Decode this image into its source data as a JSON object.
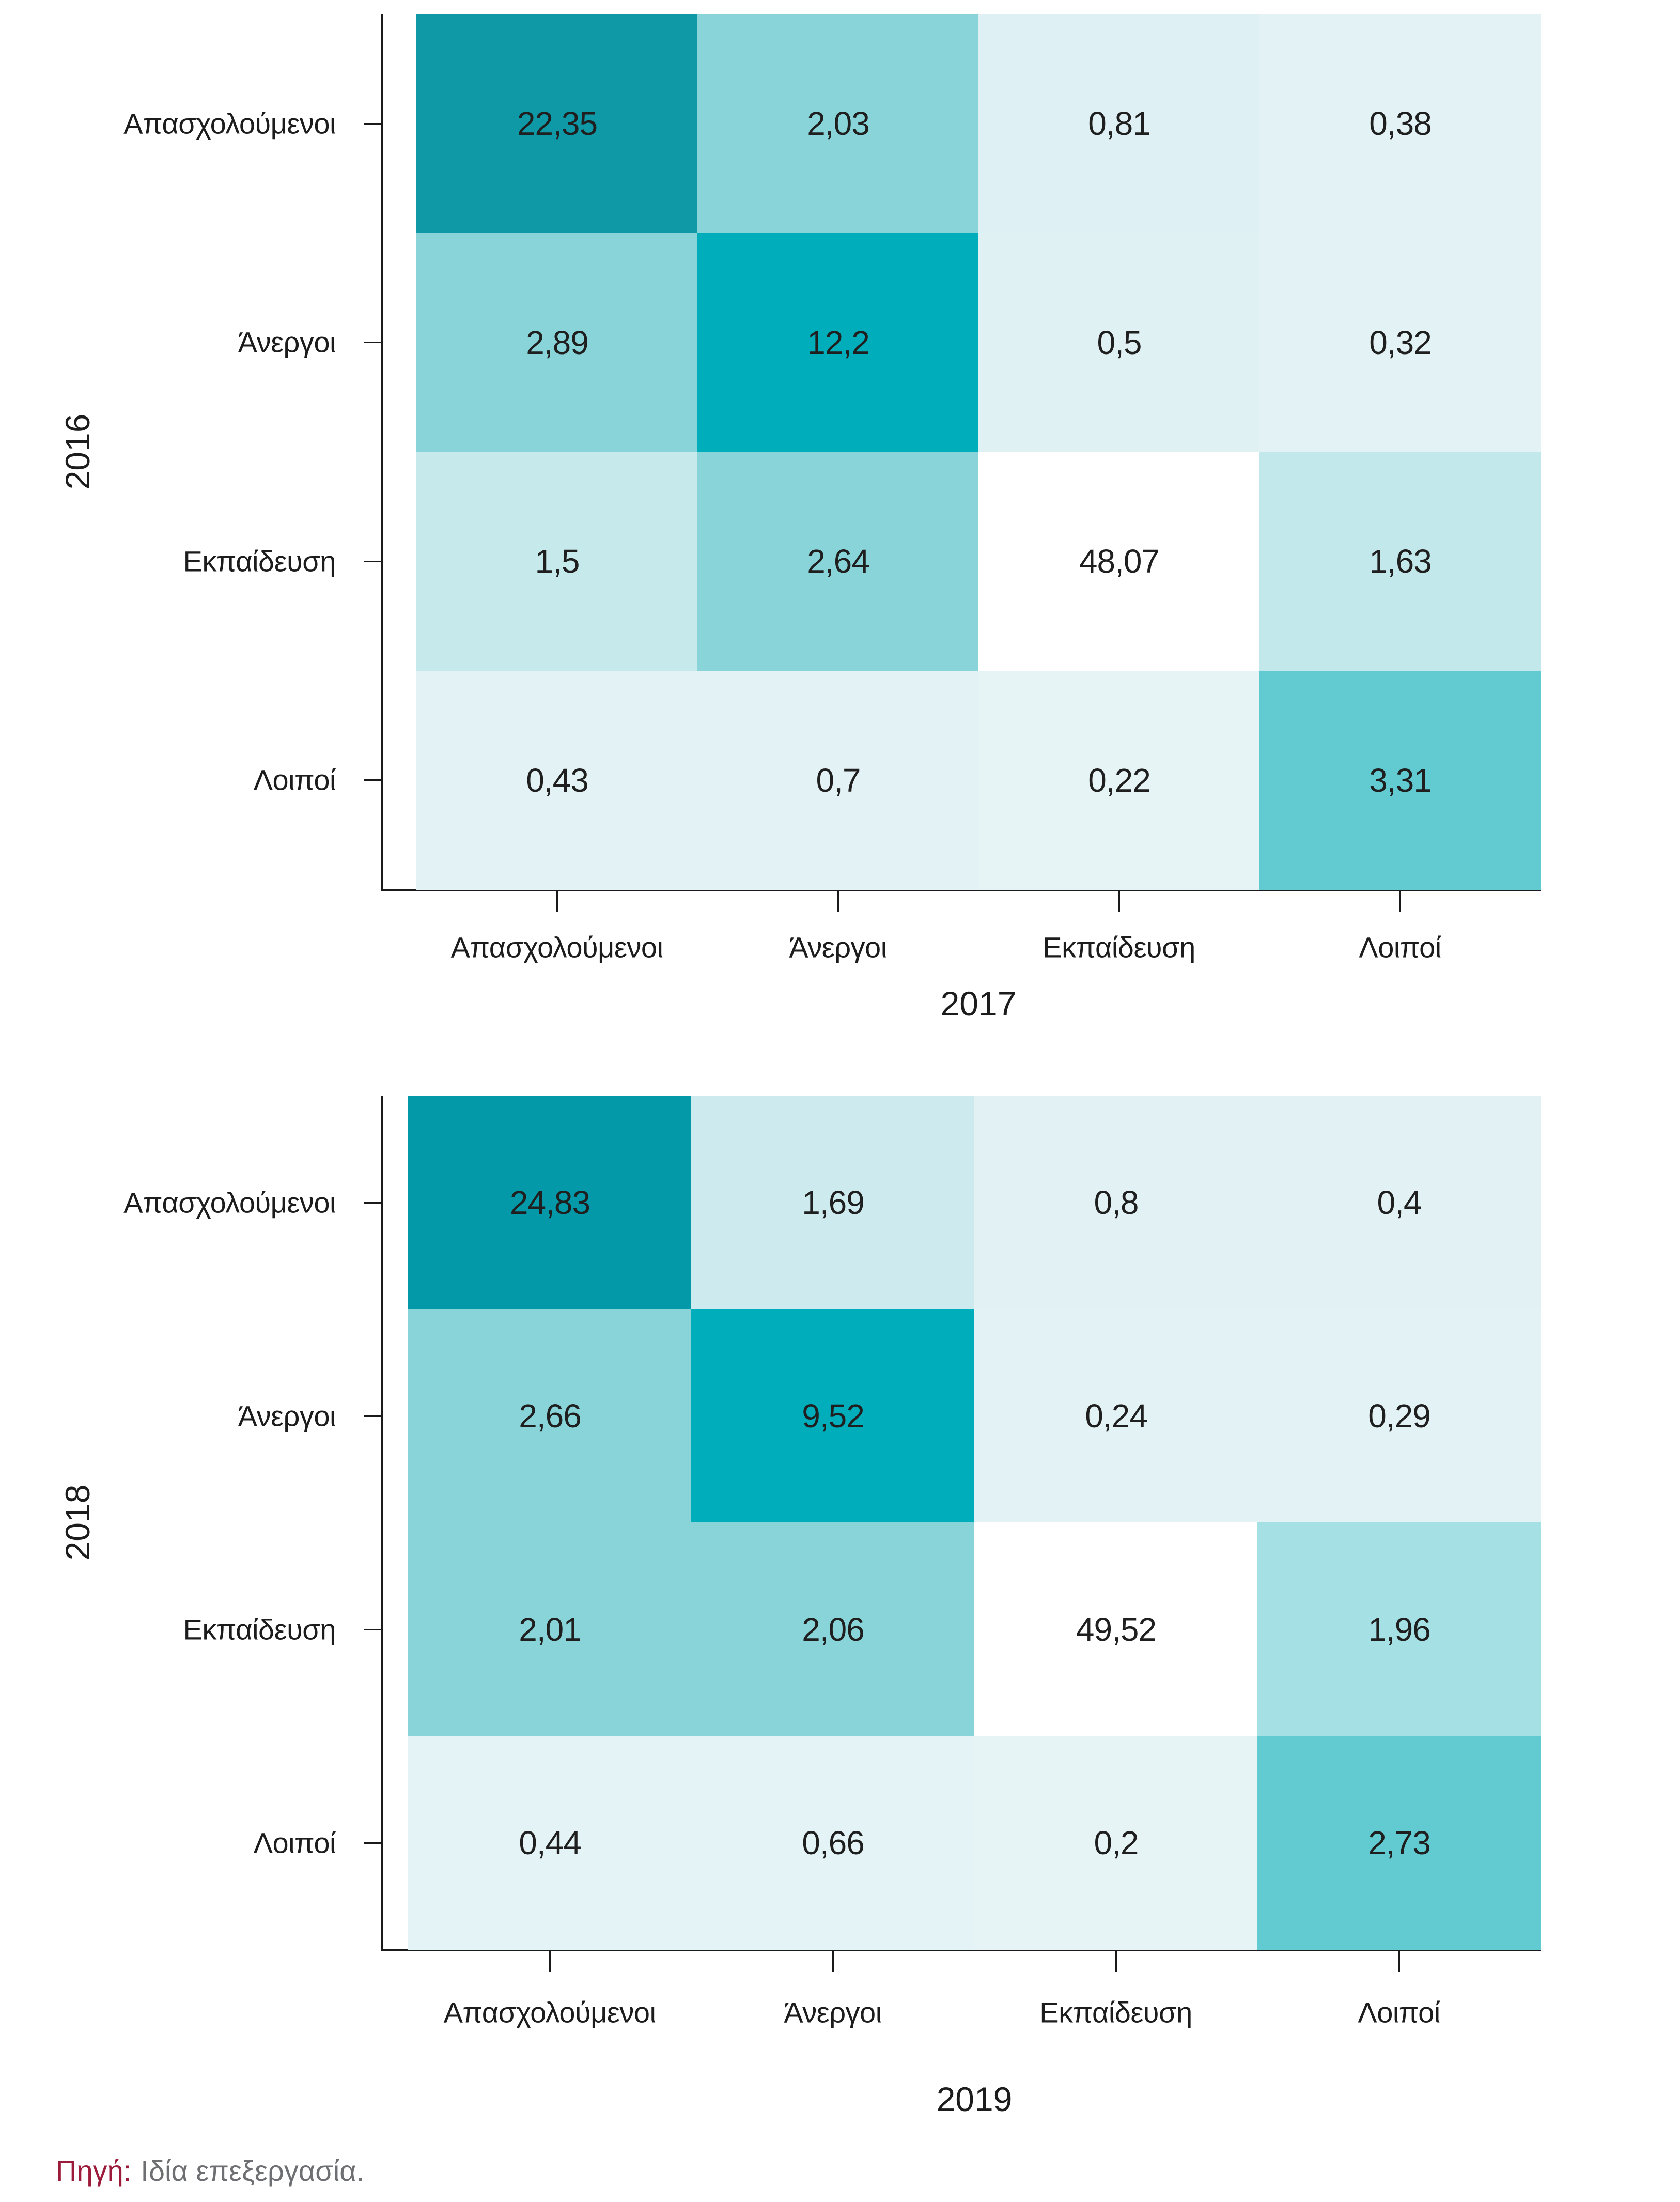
{
  "figure": {
    "background": "#ffffff",
    "text_color": "#1c1c1c"
  },
  "chart_data": [
    {
      "type": "heatmap",
      "name": "transition-matrix-2016-2017",
      "ylabel": "2016",
      "xlabel": "2017",
      "row_categories": [
        "Απασχολούμενοι",
        "Άνεργοι",
        "Εκπαίδευση",
        "Λοιποί"
      ],
      "col_categories": [
        "Απασχολούμενοι",
        "Άνεργοι",
        "Εκπαίδευση",
        "Λοιποί"
      ],
      "values": [
        [
          22.35,
          2.03,
          0.81,
          0.38
        ],
        [
          2.89,
          12.2,
          0.5,
          0.32
        ],
        [
          1.5,
          2.64,
          48.07,
          1.63
        ],
        [
          0.43,
          0.7,
          0.22,
          3.31
        ]
      ],
      "labels": [
        [
          "22,35",
          "2,03",
          "0,81",
          "0,38"
        ],
        [
          "2,89",
          "12,2",
          "0,5",
          "0,32"
        ],
        [
          "1,5",
          "2,64",
          "48,07",
          "1,63"
        ],
        [
          "0,43",
          "0,7",
          "0,22",
          "3,31"
        ]
      ],
      "cell_colors": [
        [
          "#0f98a6",
          "#89d4d9",
          "#def0f3",
          "#e2f2f5"
        ],
        [
          "#89d4d9",
          "#00adbb",
          "#e0f1f4",
          "#e3f2f5"
        ],
        [
          "#c6e9ec",
          "#89d4d9",
          "#ffffff",
          "#c3e8eb"
        ],
        [
          "#e3f2f5",
          "#e3f2f5",
          "#e6f4f6",
          "#62cbd1"
        ]
      ],
      "legend": "none",
      "grid": false
    },
    {
      "type": "heatmap",
      "name": "transition-matrix-2018-2019",
      "ylabel": "2018",
      "xlabel": "2019",
      "row_categories": [
        "Απασχολούμενοι",
        "Άνεργοι",
        "Εκπαίδευση",
        "Λοιποί"
      ],
      "col_categories": [
        "Απασχολούμενοι",
        "Άνεργοι",
        "Εκπαίδευση",
        "Λοιποί"
      ],
      "values": [
        [
          24.83,
          1.69,
          0.8,
          0.4
        ],
        [
          2.66,
          9.52,
          0.24,
          0.29
        ],
        [
          2.01,
          2.06,
          49.52,
          1.96
        ],
        [
          0.44,
          0.66,
          0.2,
          2.73
        ]
      ],
      "labels": [
        [
          "24,83",
          "1,69",
          "0,8",
          "0,4"
        ],
        [
          "2,66",
          "9,52",
          "0,24",
          "0,29"
        ],
        [
          "2,01",
          "2,06",
          "49,52",
          "1,96"
        ],
        [
          "0,44",
          "0,66",
          "0,2",
          "2,73"
        ]
      ],
      "cell_colors": [
        [
          "#0499a8",
          "#cdeaee",
          "#e1f1f4",
          "#e2f1f4"
        ],
        [
          "#89d4d9",
          "#00adbb",
          "#e2f2f5",
          "#e2f2f5"
        ],
        [
          "#89d4d9",
          "#89d4d9",
          "#ffffff",
          "#a5e0e4"
        ],
        [
          "#e4f3f5",
          "#e4f3f5",
          "#e7f4f6",
          "#62cbd1"
        ]
      ],
      "legend": "none",
      "grid": false
    }
  ],
  "source_note": {
    "prefix": "Πηγή:",
    "rest": "Ιδία επεξεργασία.",
    "prefix_color": "#9c1b3b",
    "rest_color": "#6e6f72"
  }
}
